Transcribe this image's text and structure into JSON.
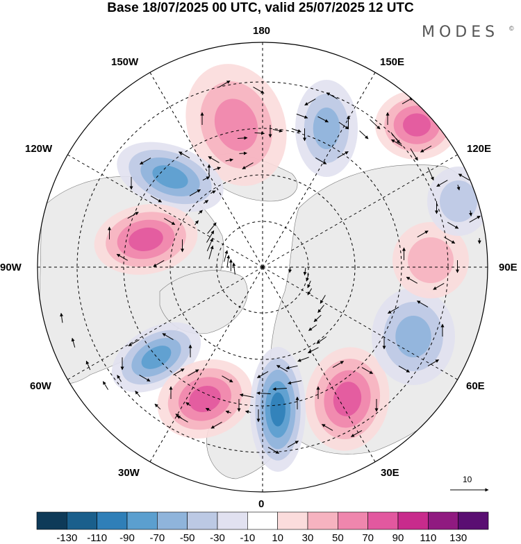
{
  "header": {
    "title": "Base 18/07/2025 00 UTC, valid 25/07/2025 12 UTC",
    "brand": "MODES",
    "brand_mark": "©"
  },
  "map": {
    "projection": "north-polar-stereographic",
    "longitude_labels": {
      "top": "180",
      "upper_left": "150W",
      "upper_right": "150E",
      "left_upper": "120W",
      "right_upper": "120E",
      "left": "90W",
      "right": "90E",
      "left_lower": "60W",
      "right_lower": "60E",
      "lower_left": "30W",
      "lower_right": "30E",
      "bottom": "0"
    },
    "vector_scale_label": "10",
    "anomaly_centers": [
      {
        "name": "anomaly-high-north-pacific",
        "sign": "positive",
        "value": 60
      },
      {
        "name": "anomaly-high-east-siberia",
        "sign": "positive",
        "value": 70
      },
      {
        "name": "anomaly-low-alaska-coast",
        "sign": "negative",
        "value": -70
      },
      {
        "name": "anomaly-low-bering",
        "sign": "negative",
        "value": -50
      },
      {
        "name": "anomaly-high-hudson-bay",
        "sign": "positive",
        "value": 70
      },
      {
        "name": "anomaly-low-labrador-sea",
        "sign": "negative",
        "value": -70
      },
      {
        "name": "anomaly-high-north-atlantic",
        "sign": "positive",
        "value": 70
      },
      {
        "name": "anomaly-low-iceland-uk",
        "sign": "negative",
        "value": -90
      },
      {
        "name": "anomaly-high-scandinavia-russia",
        "sign": "positive",
        "value": 80
      },
      {
        "name": "anomaly-low-west-siberia",
        "sign": "negative",
        "value": -60
      },
      {
        "name": "anomaly-high-central-siberia",
        "sign": "positive",
        "value": 40
      },
      {
        "name": "anomaly-low-far-east",
        "sign": "negative",
        "value": -40
      }
    ]
  },
  "colorbar": {
    "colors": [
      "#0e3a58",
      "#1a5f8c",
      "#2f7fb8",
      "#5b9fcf",
      "#8fb4db",
      "#bcc9e4",
      "#e1e1f0",
      "#ffffff",
      "#fbdcdc",
      "#f6b3c0",
      "#ef86ad",
      "#e2589f",
      "#c82b8c",
      "#901a80",
      "#5a0e72"
    ],
    "labels": [
      "-130",
      "-110",
      "-90",
      "-70",
      "-50",
      "-30",
      "-10",
      "10",
      "30",
      "50",
      "70",
      "90",
      "110",
      "130"
    ]
  }
}
